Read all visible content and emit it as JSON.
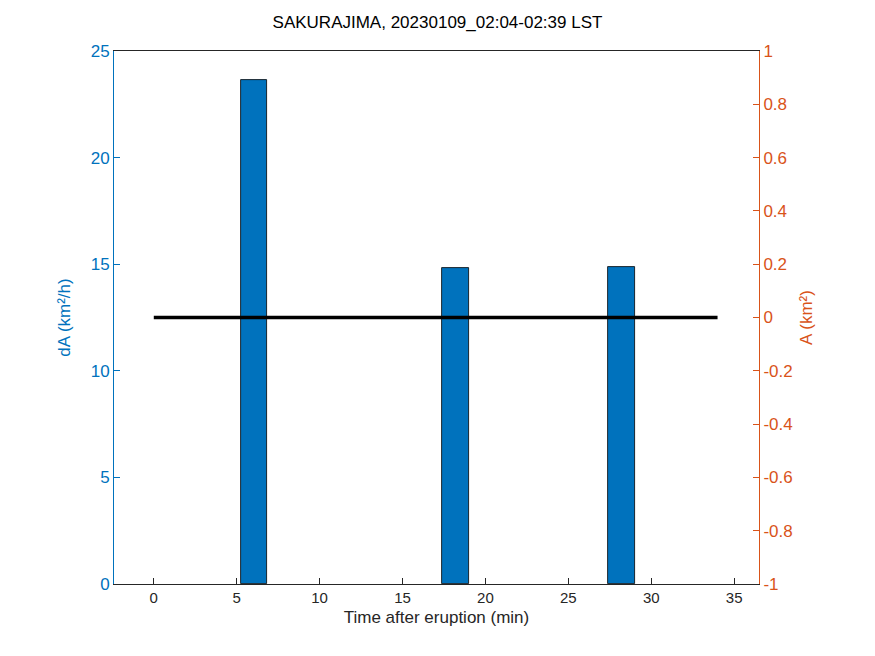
{
  "chart_data": {
    "type": "bar",
    "title": "SAKURAJIMA, 20230109_02:04-02:39 LST",
    "x_label": "Time after eruption (min)",
    "y_label": "dA (km²/h)",
    "y2_label": "A (km²)",
    "xlim": [
      -2.4,
      36.5
    ],
    "xticks": [
      0,
      5,
      10,
      15,
      20,
      25,
      30,
      35
    ],
    "ylim": [
      0,
      25
    ],
    "yticks": [
      0,
      5,
      10,
      15,
      20,
      25
    ],
    "y2lim": [
      -1,
      1
    ],
    "y2ticks": [
      -1,
      -0.8,
      -0.6,
      -0.4,
      -0.2,
      0,
      0.2,
      0.4,
      0.6,
      0.8,
      1
    ],
    "grid": false,
    "series": [
      {
        "type": "bar",
        "color": "#0072BD",
        "x": [
          6.05,
          18.2,
          28.2
        ],
        "values": [
          23.65,
          14.8,
          14.85
        ]
      },
      {
        "type": "line",
        "axis": "y2",
        "color": "#000000",
        "x": [
          0,
          34
        ],
        "values": [
          0,
          0
        ]
      }
    ]
  }
}
